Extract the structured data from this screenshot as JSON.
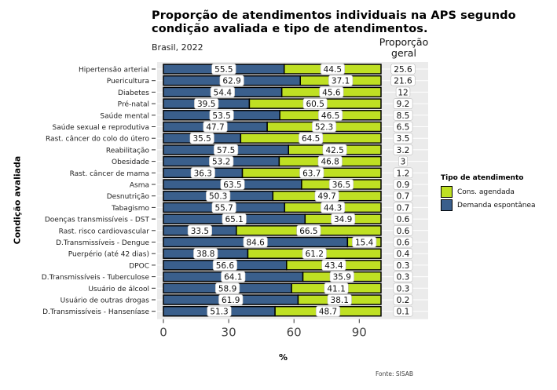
{
  "header": {
    "title_line1": "Proporção de atendimentos individuais na APS segundo",
    "title_line2": "condição avaliada e tipo de atendimentos.",
    "subtitle": "Brasil, 2022",
    "proportion_header_line1": "Proporção",
    "proportion_header_line2": "geral"
  },
  "footer": {
    "source": "Fonte: SISAB"
  },
  "colors": {
    "demanda": "#3a5f8c",
    "agendada": "#bfe023",
    "panel": "#ebebeb",
    "gridline": "#ffffff"
  },
  "legend": {
    "title": "Tipo de atendimento",
    "items": [
      {
        "label": "Cons. agendada",
        "color": "#bfe023"
      },
      {
        "label": "Demanda espontânea",
        "color": "#3a5f8c"
      }
    ]
  },
  "chart_data": {
    "type": "bar",
    "orientation": "horizontal-stacked",
    "title": "Proporção de atendimentos individuais na APS segundo condição avaliada e tipo de atendimentos.",
    "subtitle": "Brasil, 2022",
    "xlabel": "%",
    "ylabel": "Condição avaliada",
    "xlim": [
      0,
      100
    ],
    "xticks": [
      0,
      30,
      60,
      90
    ],
    "legend_position": "right",
    "categories": [
      "Hipertensão arterial",
      "Puericultura",
      "Diabetes",
      "Pré-natal",
      "Saúde mental",
      "Saúde sexual e reprodutiva",
      "Rast. câncer do colo do útero",
      "Reabilitação",
      "Obesidade",
      "Rast. câncer de mama",
      "Asma",
      "Desnutrição",
      "Tabagismo",
      "Doenças transmissíveis - DST",
      "Rast. risco cardiovascular",
      "D.Transmissíveis - Dengue",
      "Puerpério (até 42 dias)",
      "DPOC",
      "D.Transmissíveis - Tuberculose",
      "Usuário de álcool",
      "Usuário de outras drogas",
      "D.Transmissíveis - Hanseníase"
    ],
    "series": [
      {
        "name": "Demanda espontânea",
        "values": [
          55.5,
          62.9,
          54.4,
          39.5,
          53.5,
          47.7,
          35.5,
          57.5,
          53.2,
          36.3,
          63.5,
          50.3,
          55.7,
          65.1,
          33.5,
          84.6,
          38.8,
          56.6,
          64.1,
          58.9,
          61.9,
          51.3
        ]
      },
      {
        "name": "Cons. agendada",
        "values": [
          44.5,
          37.1,
          45.6,
          60.5,
          46.5,
          52.3,
          64.5,
          42.5,
          46.8,
          63.7,
          36.5,
          49.7,
          44.3,
          34.9,
          66.5,
          15.4,
          61.2,
          43.4,
          35.9,
          41.1,
          38.1,
          48.7
        ]
      }
    ],
    "proporcao_geral_header": "Proporção geral",
    "proporcao_geral": [
      "25.6",
      "21.6",
      "12",
      "9.2",
      "8.5",
      "6.5",
      "3.5",
      "3.2",
      "3",
      "1.2",
      "0.9",
      "0.7",
      "0.7",
      "0.6",
      "0.6",
      "0.6",
      "0.4",
      "0.3",
      "0.3",
      "0.3",
      "0.2",
      "0.1"
    ]
  }
}
